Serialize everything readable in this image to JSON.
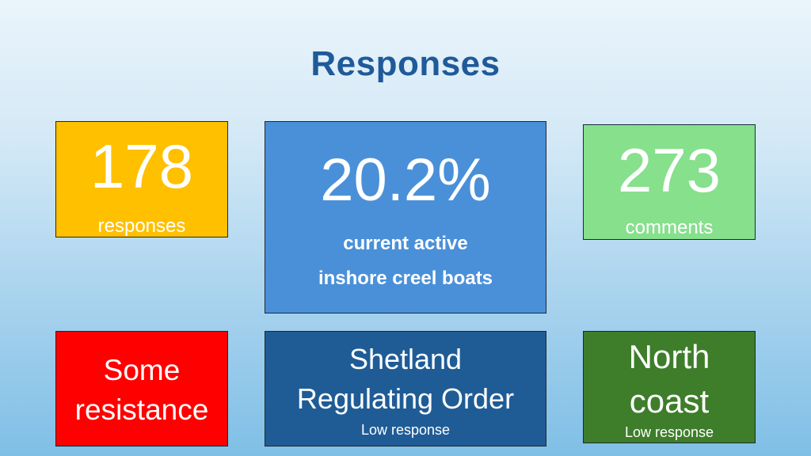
{
  "title": "Responses",
  "cards": {
    "responses": {
      "number": "178",
      "label": "responses",
      "color": "#ffc000"
    },
    "percent": {
      "number": "20.2%",
      "line1": "current active",
      "line2": "inshore creel boats",
      "color": "#4a90d9"
    },
    "comments": {
      "number": "273",
      "label": "comments",
      "color": "#86e08c"
    },
    "resistance": {
      "line1": "Some",
      "line2": "resistance",
      "color": "#ff0000"
    },
    "shetland": {
      "line1": "Shetland",
      "line2": "Regulating Order",
      "note": "Low response",
      "color": "#1f5c96"
    },
    "north": {
      "line1": "North",
      "line2": "coast",
      "note": "Low response",
      "color": "#3e7d2a"
    }
  }
}
